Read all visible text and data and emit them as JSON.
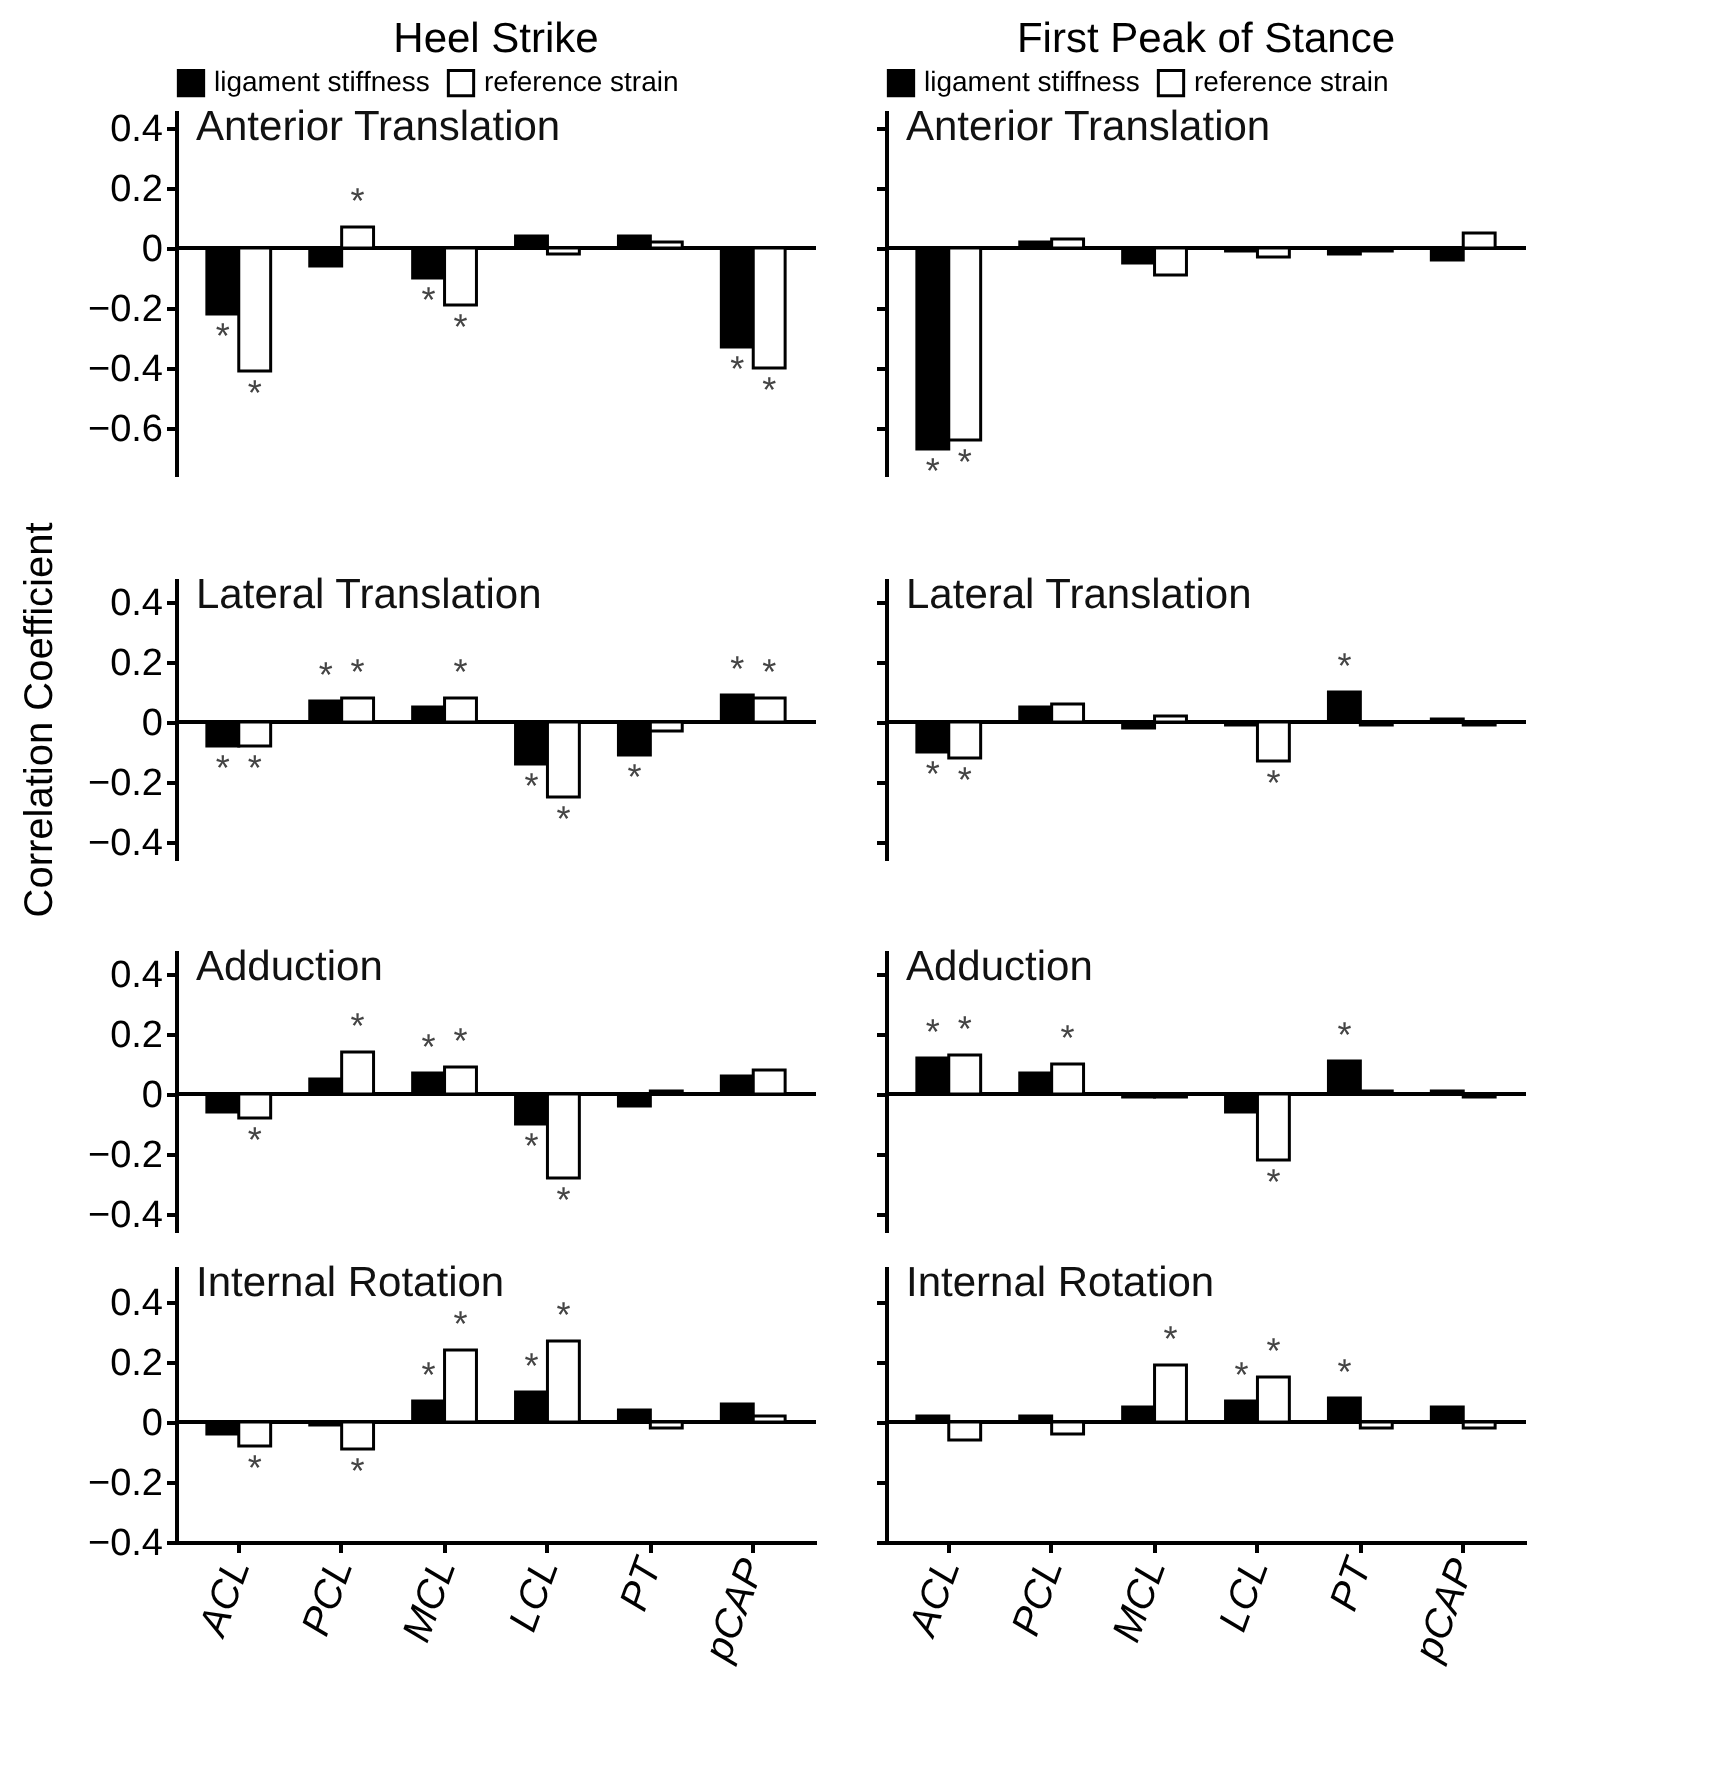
{
  "chart_data": [
    {
      "type": "bar",
      "title": "Heel Strike",
      "subtitle": "Anterior Translation",
      "categories": [
        "ACL",
        "PCL",
        "MCL",
        "LCL",
        "PT",
        "pCAP"
      ],
      "series": [
        {
          "name": "ligament stiffness",
          "color": "#000000",
          "values": [
            -0.22,
            -0.06,
            -0.1,
            0.04,
            0.04,
            -0.33
          ]
        },
        {
          "name": "reference strain",
          "color": "#ffffff",
          "values": [
            -0.41,
            0.07,
            -0.19,
            -0.02,
            0.02,
            -0.4
          ]
        }
      ],
      "ylim": [
        -0.76,
        0.46
      ],
      "yticks": [
        0.4,
        0.2,
        0,
        -0.2,
        -0.4,
        -0.6
      ],
      "legend": "top",
      "tick_labels": "y",
      "ref_lines": [
        {
          "axis": "y",
          "value": 0,
          "color": "#000000"
        }
      ],
      "annotations": [
        {
          "text": "*",
          "x": "ACL",
          "y": -0.22
        },
        {
          "text": "*",
          "x": "ACL",
          "y": -0.41
        },
        {
          "text": "*",
          "x": "PCL",
          "y": 0.07
        },
        {
          "text": "*",
          "x": "MCL",
          "y": -0.1
        },
        {
          "text": "*",
          "x": "MCL",
          "y": -0.19
        },
        {
          "text": "*",
          "x": "pCAP",
          "y": -0.33
        },
        {
          "text": "*",
          "x": "pCAP",
          "y": -0.4
        }
      ]
    },
    {
      "type": "bar",
      "title": "First Peak of Stance",
      "subtitle": "Anterior Translation",
      "categories": [
        "ACL",
        "PCL",
        "MCL",
        "LCL",
        "PT",
        "pCAP"
      ],
      "series": [
        {
          "name": "ligament stiffness",
          "color": "#000000",
          "values": [
            -0.67,
            0.02,
            -0.05,
            -0.01,
            -0.02,
            -0.04
          ]
        },
        {
          "name": "reference strain",
          "color": "#ffffff",
          "values": [
            -0.64,
            0.03,
            -0.09,
            -0.03,
            -0.01,
            0.05
          ]
        }
      ],
      "ylim": [
        -0.76,
        0.46
      ],
      "yticks": [
        0.4,
        0.2,
        0,
        -0.2,
        -0.4,
        -0.6
      ],
      "legend": "top",
      "tick_labels": false,
      "ref_lines": [
        {
          "axis": "y",
          "value": 0,
          "color": "#000000"
        }
      ],
      "annotations": [
        {
          "text": "*",
          "x": "ACL",
          "y": -0.67
        },
        {
          "text": "*",
          "x": "ACL",
          "y": -0.64
        }
      ]
    },
    {
      "type": "bar",
      "title": "Lateral Translation",
      "ylabel": "Correlation Coefficient",
      "categories": [
        "ACL",
        "PCL",
        "MCL",
        "LCL",
        "PT",
        "pCAP"
      ],
      "series": [
        {
          "name": "ligament stiffness",
          "color": "#000000",
          "values": [
            -0.08,
            0.07,
            0.05,
            -0.14,
            -0.11,
            0.09
          ]
        },
        {
          "name": "reference strain",
          "color": "#ffffff",
          "values": [
            -0.08,
            0.08,
            0.08,
            -0.25,
            -0.03,
            0.08
          ]
        }
      ],
      "ylim": [
        -0.46,
        0.48
      ],
      "yticks": [
        0.4,
        0.2,
        0,
        -0.2,
        -0.4
      ],
      "tick_labels": "y",
      "ref_lines": [
        {
          "axis": "y",
          "value": 0,
          "color": "#000000"
        }
      ],
      "annotations": [
        {
          "text": "*",
          "x": "ACL",
          "y": -0.08
        },
        {
          "text": "*",
          "x": "ACL",
          "y": -0.08
        },
        {
          "text": "*",
          "x": "PCL",
          "y": 0.07
        },
        {
          "text": "*",
          "x": "PCL",
          "y": 0.08
        },
        {
          "text": "*",
          "x": "MCL",
          "y": 0.08
        },
        {
          "text": "*",
          "x": "LCL",
          "y": -0.14
        },
        {
          "text": "*",
          "x": "LCL",
          "y": -0.25
        },
        {
          "text": "*",
          "x": "PT",
          "y": -0.11
        },
        {
          "text": "*",
          "x": "pCAP",
          "y": 0.09
        },
        {
          "text": "*",
          "x": "pCAP",
          "y": 0.08
        }
      ]
    },
    {
      "type": "bar",
      "title": "Lateral Translation",
      "categories": [
        "ACL",
        "PCL",
        "MCL",
        "LCL",
        "PT",
        "pCAP"
      ],
      "series": [
        {
          "name": "ligament stiffness",
          "color": "#000000",
          "values": [
            -0.1,
            0.05,
            -0.02,
            -0.01,
            0.1,
            0.01
          ]
        },
        {
          "name": "reference strain",
          "color": "#ffffff",
          "values": [
            -0.12,
            0.06,
            0.02,
            -0.13,
            -0.01,
            -0.01
          ]
        }
      ],
      "ylim": [
        -0.46,
        0.48
      ],
      "yticks": [
        0.4,
        0.2,
        0,
        -0.2,
        -0.4
      ],
      "tick_labels": false,
      "ref_lines": [
        {
          "axis": "y",
          "value": 0,
          "color": "#000000"
        }
      ],
      "annotations": [
        {
          "text": "*",
          "x": "ACL",
          "y": -0.1
        },
        {
          "text": "*",
          "x": "ACL",
          "y": -0.12
        },
        {
          "text": "*",
          "x": "LCL",
          "y": -0.13
        },
        {
          "text": "*",
          "x": "PT",
          "y": 0.1
        }
      ]
    },
    {
      "type": "bar",
      "title": "Adduction",
      "categories": [
        "ACL",
        "PCL",
        "MCL",
        "LCL",
        "PT",
        "pCAP"
      ],
      "series": [
        {
          "name": "ligament stiffness",
          "color": "#000000",
          "values": [
            -0.06,
            0.05,
            0.07,
            -0.1,
            -0.04,
            0.06
          ]
        },
        {
          "name": "reference strain",
          "color": "#ffffff",
          "values": [
            -0.08,
            0.14,
            0.09,
            -0.28,
            0.01,
            0.08
          ]
        }
      ],
      "ylim": [
        -0.46,
        0.48
      ],
      "yticks": [
        0.4,
        0.2,
        0,
        -0.2,
        -0.4
      ],
      "tick_labels": "y",
      "ref_lines": [
        {
          "axis": "y",
          "value": 0,
          "color": "#000000"
        }
      ],
      "annotations": [
        {
          "text": "*",
          "x": "ACL",
          "y": -0.08
        },
        {
          "text": "*",
          "x": "PCL",
          "y": 0.14
        },
        {
          "text": "*",
          "x": "MCL",
          "y": 0.07
        },
        {
          "text": "*",
          "x": "MCL",
          "y": 0.09
        },
        {
          "text": "*",
          "x": "LCL",
          "y": -0.1
        },
        {
          "text": "*",
          "x": "LCL",
          "y": -0.28
        }
      ]
    },
    {
      "type": "bar",
      "title": "Adduction",
      "categories": [
        "ACL",
        "PCL",
        "MCL",
        "LCL",
        "PT",
        "pCAP"
      ],
      "series": [
        {
          "name": "ligament stiffness",
          "color": "#000000",
          "values": [
            0.12,
            0.07,
            -0.01,
            -0.06,
            0.11,
            0.01
          ]
        },
        {
          "name": "reference strain",
          "color": "#ffffff",
          "values": [
            0.13,
            0.1,
            -0.01,
            -0.22,
            0.01,
            -0.01
          ]
        }
      ],
      "ylim": [
        -0.46,
        0.48
      ],
      "yticks": [
        0.4,
        0.2,
        0,
        -0.2,
        -0.4
      ],
      "tick_labels": false,
      "ref_lines": [
        {
          "axis": "y",
          "value": 0,
          "color": "#000000"
        }
      ],
      "annotations": [
        {
          "text": "*",
          "x": "ACL",
          "y": 0.12
        },
        {
          "text": "*",
          "x": "ACL",
          "y": 0.13
        },
        {
          "text": "*",
          "x": "PCL",
          "y": 0.1
        },
        {
          "text": "*",
          "x": "LCL",
          "y": -0.22
        },
        {
          "text": "*",
          "x": "PT",
          "y": 0.11
        }
      ]
    },
    {
      "type": "bar",
      "title": "Internal Rotation",
      "categories": [
        "ACL",
        "PCL",
        "MCL",
        "LCL",
        "PT",
        "pCAP"
      ],
      "series": [
        {
          "name": "ligament stiffness",
          "color": "#000000",
          "values": [
            -0.04,
            -0.01,
            0.07,
            0.1,
            0.04,
            0.06
          ]
        },
        {
          "name": "reference strain",
          "color": "#ffffff",
          "values": [
            -0.08,
            -0.09,
            0.24,
            0.27,
            -0.02,
            0.02
          ]
        }
      ],
      "ylim": [
        -0.4,
        0.52
      ],
      "yticks": [
        0.4,
        0.2,
        0,
        -0.2,
        -0.4
      ],
      "ref_lines": [
        {
          "axis": "y",
          "value": 0,
          "color": "#000000"
        }
      ],
      "annotations": [
        {
          "text": "*",
          "x": "ACL",
          "y": -0.08
        },
        {
          "text": "*",
          "x": "PCL",
          "y": -0.09
        },
        {
          "text": "*",
          "x": "MCL",
          "y": 0.07
        },
        {
          "text": "*",
          "x": "MCL",
          "y": 0.24
        },
        {
          "text": "*",
          "x": "LCL",
          "y": 0.1
        },
        {
          "text": "*",
          "x": "LCL",
          "y": 0.27
        }
      ]
    },
    {
      "type": "bar",
      "title": "Internal Rotation",
      "categories": [
        "ACL",
        "PCL",
        "MCL",
        "LCL",
        "PT",
        "pCAP"
      ],
      "series": [
        {
          "name": "ligament stiffness",
          "color": "#000000",
          "values": [
            0.02,
            0.02,
            0.05,
            0.07,
            0.08,
            0.05
          ]
        },
        {
          "name": "reference strain",
          "color": "#ffffff",
          "values": [
            -0.06,
            -0.04,
            0.19,
            0.15,
            -0.02,
            -0.02
          ]
        }
      ],
      "ylim": [
        -0.4,
        0.52
      ],
      "yticks": [
        0.4,
        0.2,
        0,
        -0.2,
        -0.4
      ],
      "tick_labels": "x",
      "ref_lines": [
        {
          "axis": "y",
          "value": 0,
          "color": "#000000"
        }
      ],
      "annotations": [
        {
          "text": "*",
          "x": "MCL",
          "y": 0.19
        },
        {
          "text": "*",
          "x": "LCL",
          "y": 0.07
        },
        {
          "text": "*",
          "x": "LCL",
          "y": 0.15
        },
        {
          "text": "*",
          "x": "PT",
          "y": 0.08
        }
      ]
    }
  ]
}
